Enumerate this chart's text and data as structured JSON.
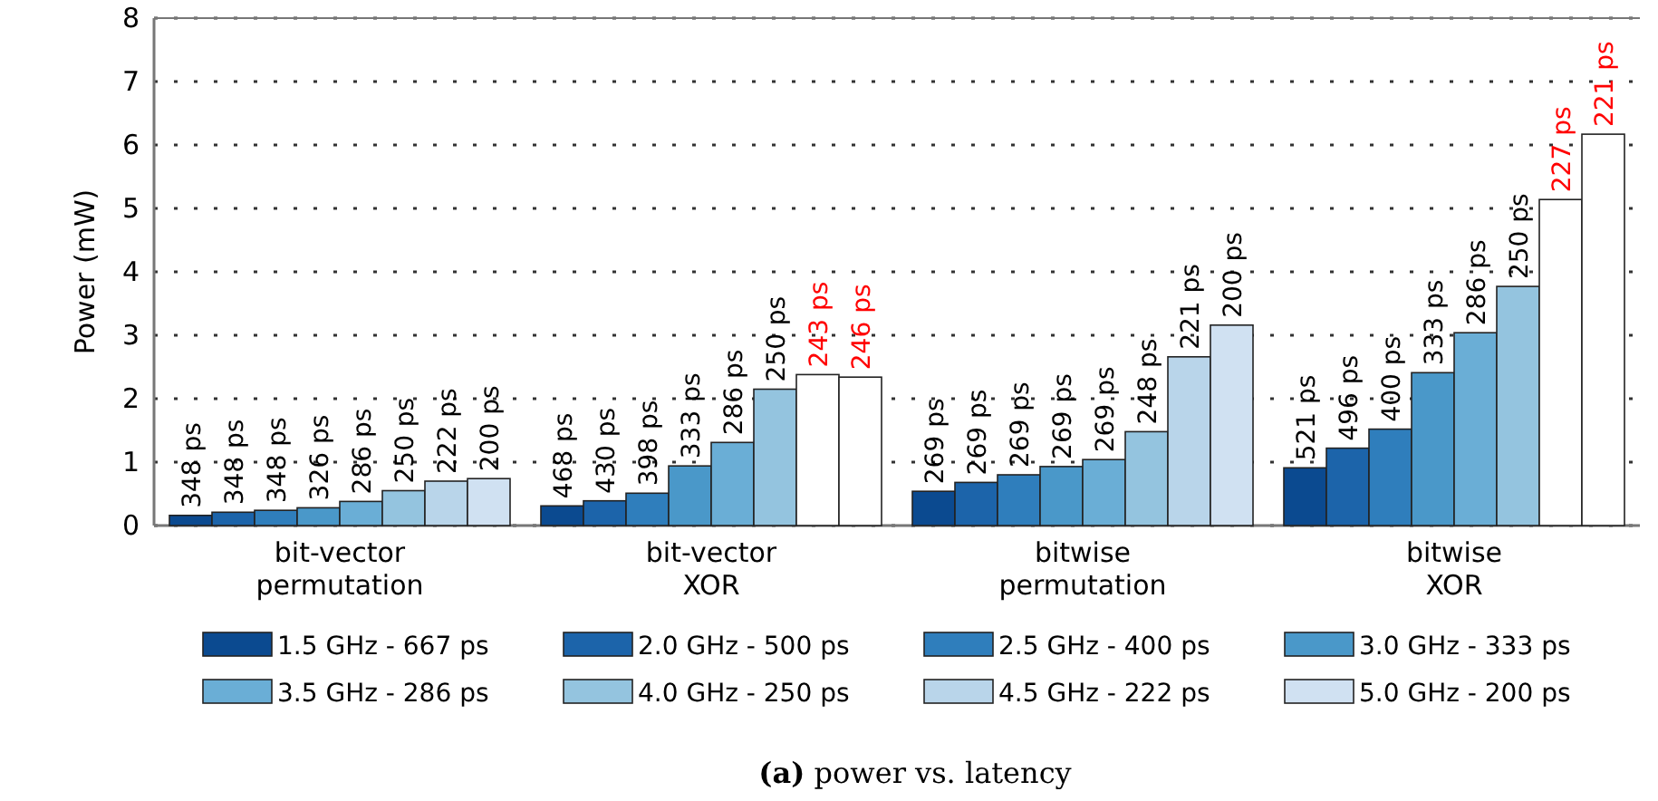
{
  "chart_data": {
    "type": "bar",
    "ylabel": "Power (mW)",
    "categories": [
      "bit-vector\npermutation",
      "bit-vector\nXOR",
      "bitwise\npermutation",
      "bitwise\nXOR"
    ],
    "ylim": [
      0,
      8
    ],
    "yticks": [
      0,
      1,
      2,
      3,
      4,
      5,
      6,
      7,
      8
    ],
    "grid": "y",
    "legend": "bottom",
    "series": [
      {
        "name": "1.5 GHz - 667 ps",
        "color": "#0b4a90",
        "values": [
          0.16,
          0.31,
          0.54,
          0.91
        ]
      },
      {
        "name": "2.0 GHz - 500 ps",
        "color": "#1c64aa",
        "values": [
          0.21,
          0.39,
          0.68,
          1.22
        ]
      },
      {
        "name": "2.5 GHz - 400 ps",
        "color": "#2f7ebc",
        "values": [
          0.24,
          0.51,
          0.8,
          1.52
        ]
      },
      {
        "name": "3.0 GHz - 333 ps",
        "color": "#4a98c9",
        "values": [
          0.28,
          0.94,
          0.93,
          2.41
        ]
      },
      {
        "name": "3.5 GHz - 286 ps",
        "color": "#6aaed6",
        "values": [
          0.38,
          1.31,
          1.04,
          3.04
        ]
      },
      {
        "name": "4.0 GHz - 250 ps",
        "color": "#94c4df",
        "values": [
          0.55,
          2.15,
          1.48,
          3.77
        ]
      },
      {
        "name": "4.5 GHz - 222 ps",
        "color": "#b9d5ea",
        "colors": [
          "#b9d5ea",
          "#ffffff",
          "#b9d5ea",
          "#ffffff"
        ],
        "values": [
          0.7,
          2.38,
          2.66,
          5.14
        ]
      },
      {
        "name": "5.0 GHz - 200 ps",
        "color": "#d0e1f2",
        "colors": [
          "#d0e1f2",
          "#ffffff",
          "#d0e1f2",
          "#ffffff"
        ],
        "values": [
          0.74,
          2.34,
          3.16,
          6.17
        ]
      }
    ],
    "annotations": [
      "348 ps",
      "348 ps",
      "348 ps",
      "326 ps",
      "286 ps",
      "250 ps",
      "222 ps",
      "200 ps",
      "468 ps",
      "430 ps",
      "398 ps",
      "333 ps",
      "286 ps",
      "250 ps",
      "243 ps",
      "246 ps",
      "269 ps",
      "269 ps",
      "269 ps",
      "269 ps",
      "269 ps",
      "248 ps",
      "221 ps",
      "200 ps",
      "521 ps",
      "496 ps",
      "400 ps",
      "333 ps",
      "286 ps",
      "250 ps",
      "227 ps",
      "221 ps",
      "**(a)** power vs. latency"
    ]
  }
}
